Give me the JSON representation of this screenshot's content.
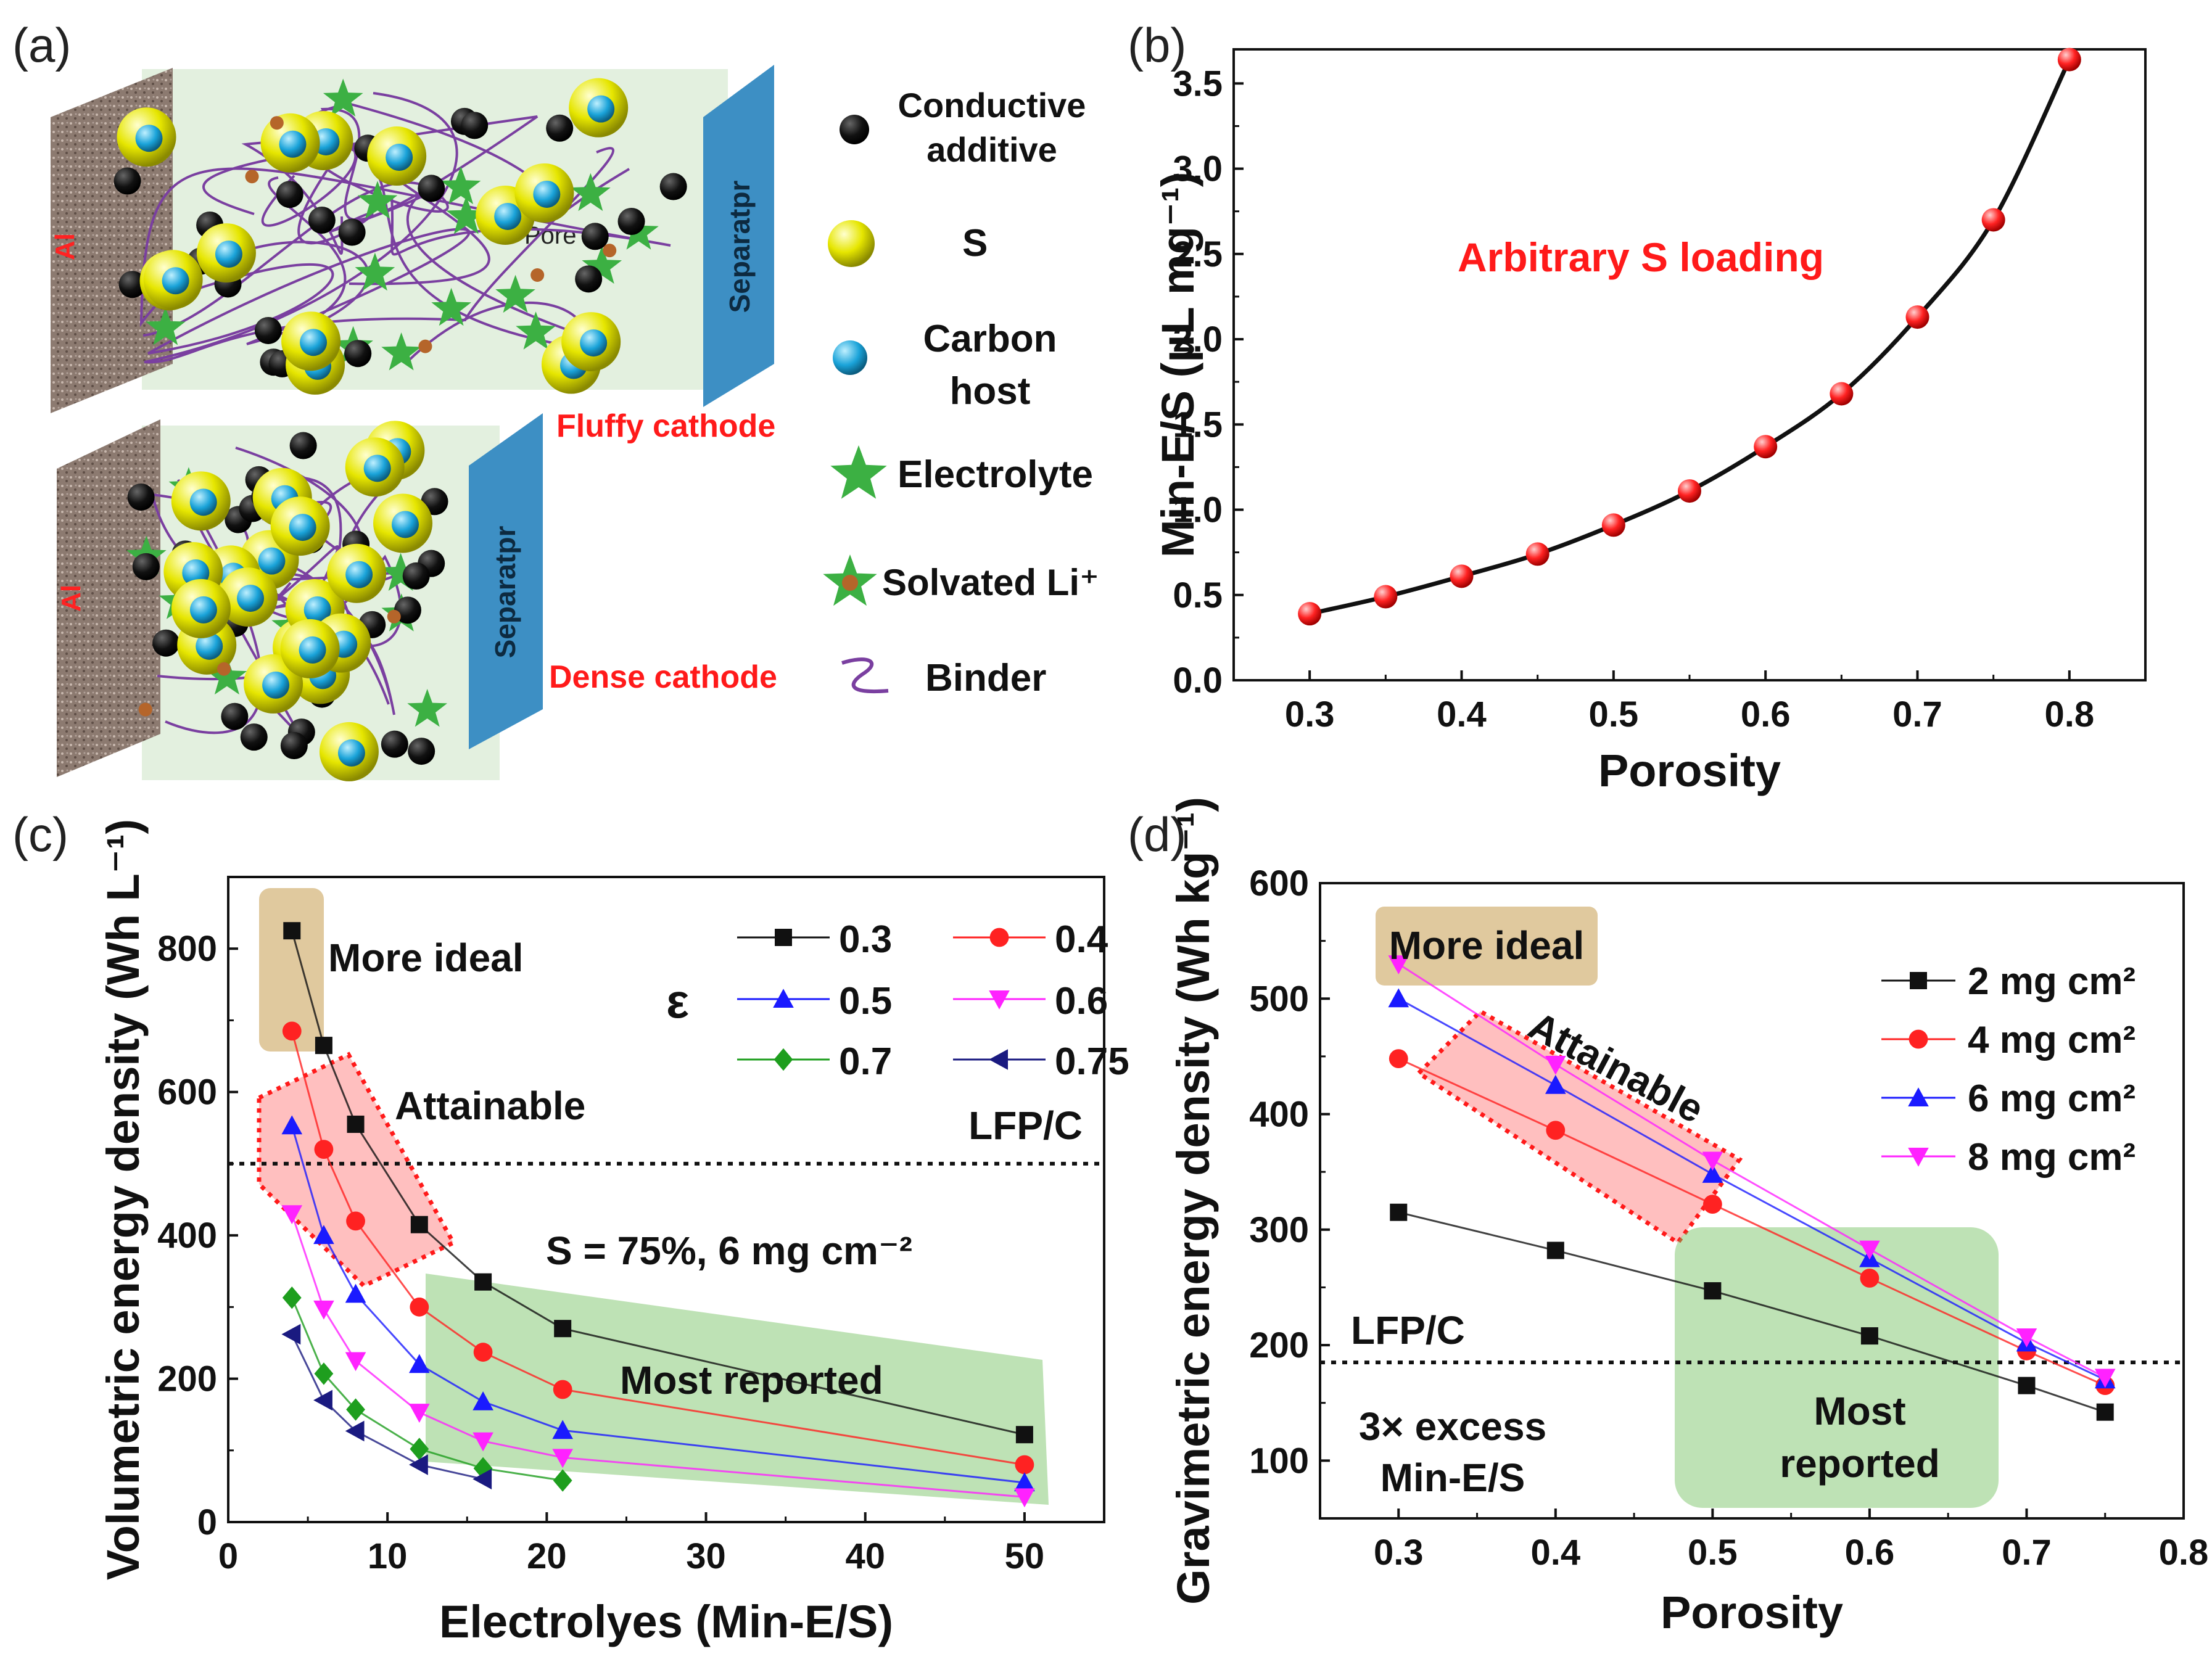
{
  "panels": {
    "a": {
      "label": "(a)",
      "al_label": "Al",
      "separator_label": "Separatpr",
      "pore_label": "Pore",
      "fluffy_label": "Fluffy cathode",
      "dense_label": "Dense cathode",
      "legend": {
        "conductive": [
          "Conductive",
          "additive"
        ],
        "s": "S",
        "carbon": [
          "Carbon",
          "host"
        ],
        "electrolyte": "Electrolyte",
        "solvated": "Solvated Li⁺",
        "binder": "Binder"
      },
      "colors": {
        "al": "#8c7a70",
        "separator": "#3d8fc4",
        "bg": "#e3f0df",
        "star": "#3cb043",
        "sphere": "#e6e600",
        "core": "#1aa3d9",
        "binder": "#7a3fa0"
      }
    },
    "b": {
      "label": "(b)"
    },
    "c": {
      "label": "(c)"
    },
    "d": {
      "label": "(d)"
    }
  },
  "chart_data": [
    {
      "id": "b",
      "type": "line",
      "xlabel": "Porosity",
      "ylabel": "Min-E/S (μL mg⁻¹)",
      "annotation": "Arbitrary S loading",
      "xlim": [
        0.25,
        0.85
      ],
      "ylim": [
        0,
        3.7
      ],
      "xticks": [
        "0.3",
        "0.4",
        "0.5",
        "0.6",
        "0.7",
        "0.8"
      ],
      "yticks": [
        "0.0",
        "0.5",
        "1.0",
        "1.5",
        "2.0",
        "2.5",
        "3.0",
        "3.5"
      ],
      "x": [
        0.3,
        0.35,
        0.4,
        0.45,
        0.5,
        0.55,
        0.6,
        0.65,
        0.7,
        0.75,
        0.8
      ],
      "y": [
        0.39,
        0.49,
        0.61,
        0.74,
        0.91,
        1.11,
        1.37,
        1.68,
        2.13,
        2.7,
        3.64
      ]
    },
    {
      "id": "c",
      "type": "line",
      "xlabel": "Electrolyes (Min-E/S)",
      "ylabel": "Volumetric energy density (Wh L⁻¹)",
      "xlim": [
        0,
        55
      ],
      "ylim": [
        0,
        900
      ],
      "xticks": [
        "0",
        "10",
        "20",
        "30",
        "40",
        "50"
      ],
      "yticks": [
        "0",
        "200",
        "400",
        "600",
        "800"
      ],
      "legend_title": "ε",
      "reference": {
        "label": "LFP/C",
        "y": 500
      },
      "annotations": {
        "ideal": "More ideal",
        "attainable": "Attainable",
        "reported": "Most reported",
        "condition": "S = 75%, 6 mg cm⁻²"
      },
      "series": [
        {
          "name": "0.3",
          "color": "#111111",
          "marker": "square",
          "x": [
            4,
            6,
            8,
            12,
            16,
            21,
            50
          ],
          "y": [
            825,
            665,
            555,
            415,
            335,
            270,
            122
          ]
        },
        {
          "name": "0.4",
          "color": "#ff2222",
          "marker": "circle",
          "x": [
            4,
            6,
            8,
            12,
            16,
            21,
            50
          ],
          "y": [
            685,
            520,
            420,
            300,
            237,
            185,
            80
          ]
        },
        {
          "name": "0.5",
          "color": "#1a1aff",
          "marker": "triangle-up",
          "x": [
            4,
            6,
            8,
            12,
            16,
            21,
            50
          ],
          "y": [
            553,
            400,
            318,
            220,
            168,
            128,
            55
          ]
        },
        {
          "name": "0.6",
          "color": "#ff22ff",
          "marker": "triangle-down",
          "x": [
            4,
            6,
            8,
            12,
            16,
            21,
            50
          ],
          "y": [
            430,
            297,
            225,
            153,
            113,
            90,
            35
          ]
        },
        {
          "name": "0.7",
          "color": "#1e9e1e",
          "marker": "diamond",
          "x": [
            4,
            6,
            8,
            12,
            16,
            21
          ],
          "y": [
            313,
            207,
            157,
            102,
            75,
            58
          ]
        },
        {
          "name": "0.75",
          "color": "#1a1a80",
          "marker": "triangle-left",
          "x": [
            4,
            6,
            8,
            12,
            16
          ],
          "y": [
            262,
            170,
            127,
            80,
            60
          ]
        }
      ]
    },
    {
      "id": "d",
      "type": "line",
      "xlabel": "Porosity",
      "ylabel": "Gravimetric energy density (Wh kg⁻¹)",
      "xlim": [
        0.25,
        0.8
      ],
      "ylim": [
        50,
        600
      ],
      "xticks": [
        "0.3",
        "0.4",
        "0.5",
        "0.6",
        "0.7",
        "0.8"
      ],
      "yticks": [
        "100",
        "200",
        "300",
        "400",
        "500",
        "600"
      ],
      "reference": {
        "label": "LFP/C",
        "y": 185
      },
      "annotations": {
        "ideal": "More ideal",
        "attainable": "Attainable",
        "reported_1": "Most",
        "reported_2": "reported",
        "excess_1": "3× excess",
        "excess_2": "Min-E/S"
      },
      "series": [
        {
          "name": "2 mg cm²",
          "color": "#111111",
          "marker": "square",
          "x": [
            0.3,
            0.4,
            0.5,
            0.6,
            0.7,
            0.75
          ],
          "y": [
            315,
            282,
            247,
            208,
            165,
            142
          ]
        },
        {
          "name": "4 mg cm²",
          "color": "#ff2222",
          "marker": "circle",
          "x": [
            0.3,
            0.4,
            0.5,
            0.6,
            0.7,
            0.75
          ],
          "y": [
            448,
            386,
            322,
            258,
            195,
            165
          ]
        },
        {
          "name": "6 mg cm²",
          "color": "#1a1aff",
          "marker": "triangle-up",
          "x": [
            0.3,
            0.4,
            0.5,
            0.6,
            0.7,
            0.75
          ],
          "y": [
            500,
            425,
            348,
            275,
            202,
            170
          ]
        },
        {
          "name": "8 mg cm²",
          "color": "#ff22ff",
          "marker": "triangle-down",
          "x": [
            0.3,
            0.4,
            0.5,
            0.6,
            0.7,
            0.75
          ],
          "y": [
            530,
            443,
            360,
            283,
            207,
            172
          ]
        }
      ]
    }
  ]
}
